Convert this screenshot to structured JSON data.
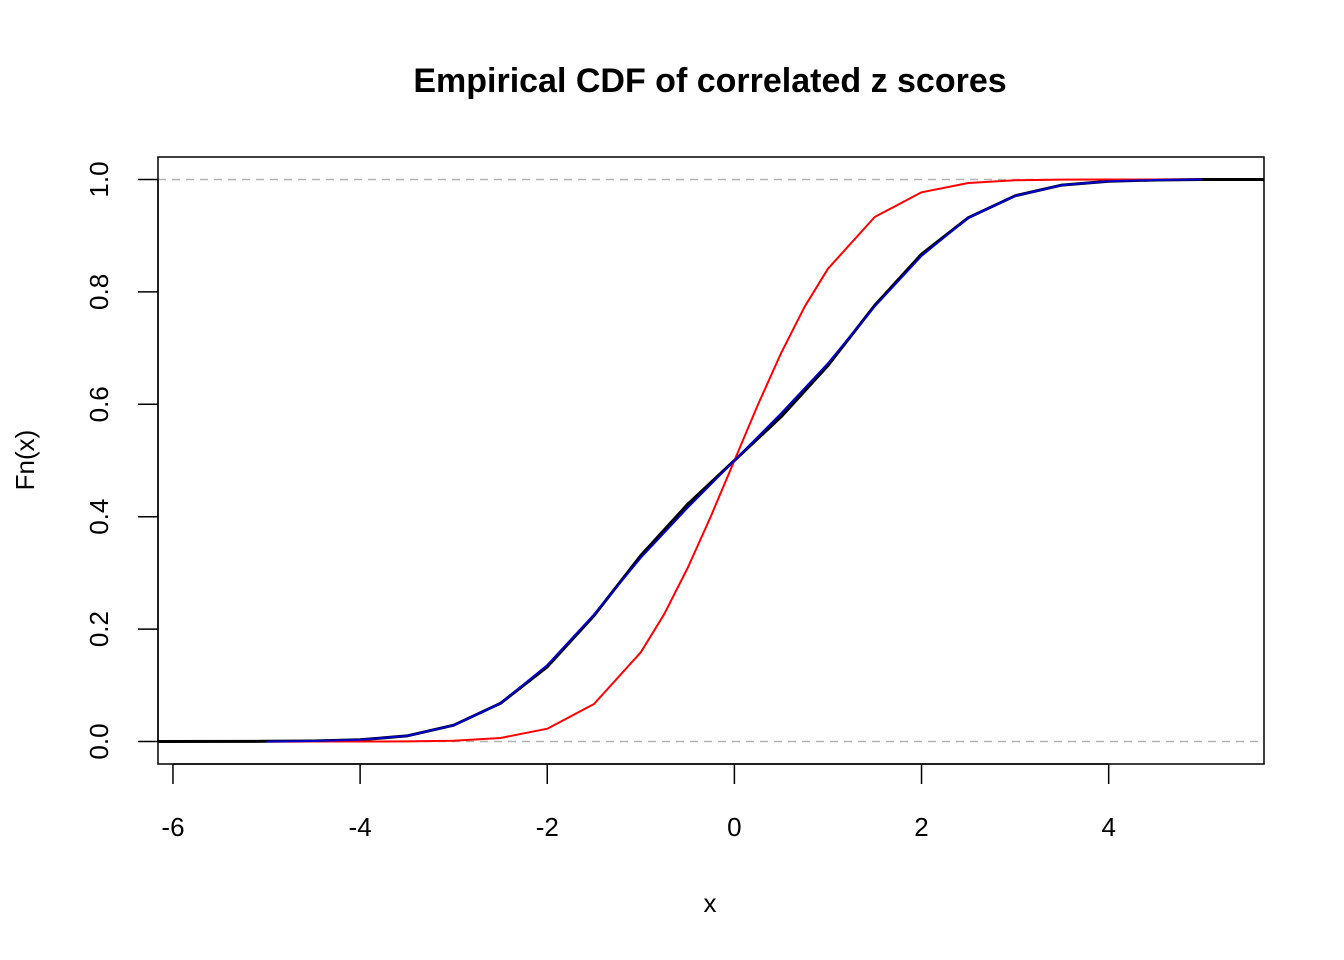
{
  "chart_data": {
    "type": "line",
    "title": "Empirical CDF of correlated z scores",
    "xlabel": "x",
    "ylabel": "Fn(x)",
    "xlim": [
      -6.16,
      5.66
    ],
    "ylim": [
      -0.04,
      1.04
    ],
    "x_ticks": [
      "-6",
      "-4",
      "-2",
      "0",
      "2",
      "4"
    ],
    "y_ticks": [
      "0.0",
      "0.2",
      "0.4",
      "0.6",
      "0.8",
      "1.0"
    ],
    "reference_lines": [
      0,
      1
    ],
    "colors": {
      "empirical": "#000000",
      "standard_normal": "#ff0000",
      "fitted_normal": "#0000cd",
      "reference": "#b3b3b3"
    },
    "series": [
      {
        "x": [
          -6.16,
          -5.0,
          -4.5,
          -4.0,
          -3.5,
          -3.0,
          -2.5,
          -2.0,
          -1.5,
          -1.0,
          -0.5,
          0.0,
          0.5,
          1.0,
          1.5,
          2.0,
          2.5,
          3.0,
          3.5,
          4.0,
          4.5,
          5.0,
          5.66
        ],
        "y": [
          0,
          0.0003,
          0.001,
          0.003,
          0.01,
          0.029,
          0.068,
          0.133,
          0.224,
          0.331,
          0.422,
          0.5,
          0.578,
          0.669,
          0.776,
          0.867,
          0.932,
          0.971,
          0.99,
          0.997,
          0.999,
          1.0,
          1.0
        ]
      },
      {
        "x": [
          -5.0,
          -4.5,
          -4.0,
          -3.5,
          -3.0,
          -2.5,
          -2.0,
          -1.5,
          -1.0,
          -0.75,
          -0.5,
          -0.25,
          0.0,
          0.25,
          0.5,
          0.75,
          1.0,
          1.5,
          2.0,
          2.5,
          3.0,
          3.5,
          4.0,
          4.5,
          5.0
        ],
        "y": [
          0.0,
          0.0,
          3e-05,
          0.0002,
          0.0013,
          0.0062,
          0.0228,
          0.0668,
          0.1587,
          0.2266,
          0.3085,
          0.4013,
          0.5,
          0.5987,
          0.6915,
          0.7734,
          0.8413,
          0.9332,
          0.9772,
          0.9938,
          0.9987,
          0.9998,
          1.0,
          1.0,
          1.0
        ]
      },
      {
        "x": [
          -5.0,
          -4.5,
          -4.0,
          -3.5,
          -3.0,
          -2.5,
          -2.0,
          -1.5,
          -1.0,
          -0.5,
          0.0,
          0.5,
          1.0,
          1.5,
          2.0,
          2.5,
          3.0,
          3.5,
          4.0,
          4.5,
          5.0
        ],
        "y": [
          0.0,
          0.001,
          0.003,
          0.01,
          0.029,
          0.068,
          0.136,
          0.226,
          0.327,
          0.416,
          0.5,
          0.584,
          0.673,
          0.774,
          0.864,
          0.932,
          0.971,
          0.99,
          0.997,
          0.999,
          1.0
        ]
      }
    ]
  }
}
